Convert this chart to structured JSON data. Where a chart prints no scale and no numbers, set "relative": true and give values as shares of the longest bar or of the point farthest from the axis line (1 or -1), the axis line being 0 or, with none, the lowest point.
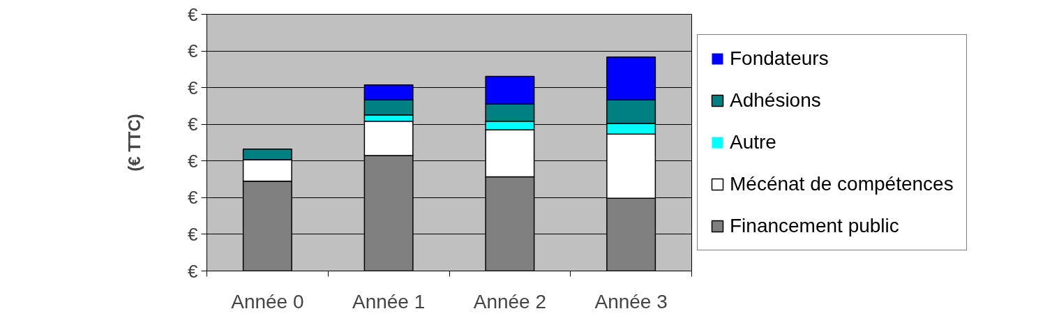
{
  "chart_data": {
    "type": "bar",
    "stacked": true,
    "relative": true,
    "ylabel": "(€ TTC)",
    "categories": [
      "Année 0",
      "Année 1",
      "Année 2",
      "Année 3"
    ],
    "series": [
      {
        "name": "Financement public",
        "color": "#808080",
        "values": [
          0.42,
          0.54,
          0.44,
          0.34
        ]
      },
      {
        "name": "Mécénat de compétences",
        "color": "#ffffff",
        "values": [
          0.1,
          0.16,
          0.22,
          0.3
        ]
      },
      {
        "name": "Autre",
        "color": "#00ffff",
        "values": [
          0,
          0.03,
          0.04,
          0.05
        ]
      },
      {
        "name": "Adhésions",
        "color": "#008080",
        "values": [
          0.05,
          0.07,
          0.08,
          0.11
        ]
      },
      {
        "name": "Fondateurs",
        "color": "#0000ff",
        "values": [
          0,
          0.07,
          0.13,
          0.2
        ]
      }
    ],
    "annotations": [
      "€",
      "€",
      "€",
      "€",
      "€",
      "€",
      "€",
      "€"
    ],
    "grid": "y",
    "legend": "right"
  }
}
